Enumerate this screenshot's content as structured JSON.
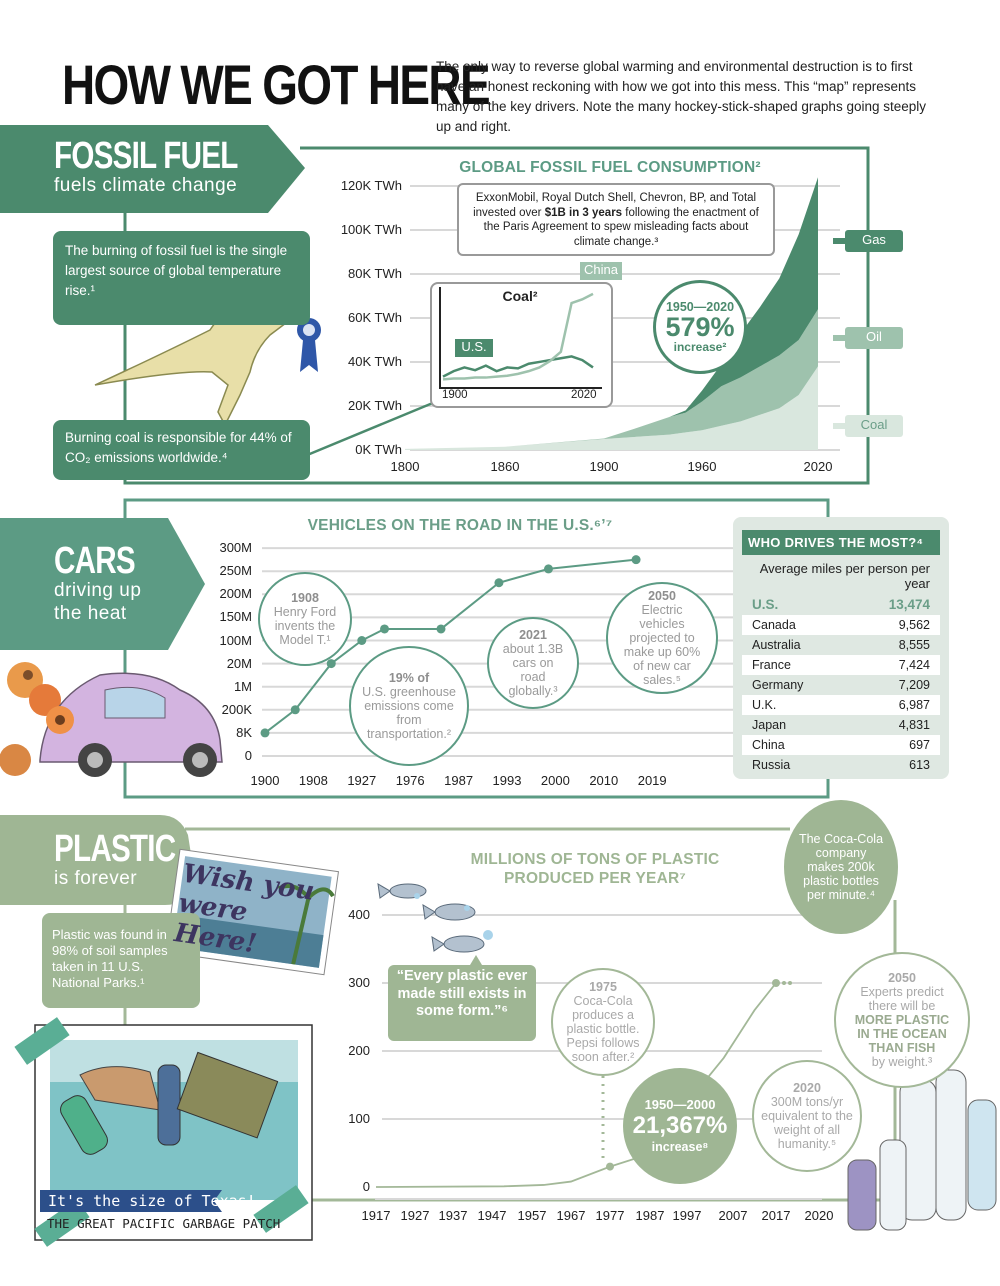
{
  "header": {
    "title": "HOW WE GOT HERE",
    "intro": "The only way to reverse global warming and environmental destruction is to first have an honest reckoning with how we got into this mess. This “map” represents many of the key drivers. Note the many hockey-stick-shaped graphs going steeply up and right."
  },
  "colors": {
    "fossil": "#4b8a6d",
    "cars": "#5c9b84",
    "plastic": "#9fb694",
    "oil": "#9ec2ad",
    "coal": "#d9e7de"
  },
  "fossil": {
    "banner_title": "FOSSIL FUEL",
    "banner_sub": "fuels climate change",
    "fact1": "The burning of fossil fuel is the single largest source of global temperature rise.¹",
    "fact2": "Burning coal is responsible for 44% of CO₂ emissions worldwide.⁴",
    "note_pre": "ExxonMobil, Royal Dutch Shell, Chevron, BP, and Total invested over ",
    "note_bold": "$1B in 3 years",
    "note_post": " following the enactment of the Paris Agreement to spew misleading facts about climate change.³",
    "callout": {
      "range": "1950—2020",
      "value": "579%",
      "label": "increase²"
    },
    "illustration": "dinosaur-skeleton-with-first-place-ribbon"
  },
  "cars": {
    "banner_title": "CARS",
    "banner_sub1": "driving up",
    "banner_sub2": "the heat",
    "notes": [
      {
        "year": "1908",
        "text": "Henry Ford invents the Model T.¹"
      },
      {
        "year": "19% of",
        "text": "U.S. greenhouse emissions come from transportation.²"
      },
      {
        "year": "2021",
        "text": "about 1.3B cars on road globally.³"
      },
      {
        "year": "2050",
        "text": "Electric vehicles projected to make up 60% of new car sales.⁵"
      }
    ],
    "table": {
      "title": "WHO DRIVES THE MOST?⁴",
      "subtitle": "Average miles per person per year",
      "rows": [
        [
          "U.S.",
          "13,474"
        ],
        [
          "Canada",
          "9,562"
        ],
        [
          "Australia",
          "8,555"
        ],
        [
          "France",
          "7,424"
        ],
        [
          "Germany",
          "7,209"
        ],
        [
          "U.K.",
          "6,987"
        ],
        [
          "Japan",
          "4,831"
        ],
        [
          "China",
          "697"
        ],
        [
          "Russia",
          "613"
        ]
      ]
    },
    "illustration": "purple-beetle-car-with-flowers"
  },
  "plastic": {
    "banner_title": "PLASTIC",
    "banner_sub": "is forever",
    "fact": "Plastic was found in 98% of soil samples taken in 11 U.S. National Parks.¹",
    "quote": "“Every plastic ever made still exists in some form.”⁶",
    "coke": "The Coca-Cola company makes 200k plastic bottles per minute.⁴",
    "n1975": {
      "year": "1975",
      "text": "Coca-Cola produces a plastic bottle. Pepsi follows soon after.²"
    },
    "callout": {
      "range": "1950—2000",
      "value": "21,367%",
      "label": "increase⁸"
    },
    "n2020": {
      "year": "2020",
      "text": "300M tons/yr equivalent to the weight of all humanity.⁵"
    },
    "n2050": {
      "year": "2050",
      "pre": "Experts predict there will be",
      "bold": "MORE PLASTIC IN THE OCEAN THAN FISH",
      "post": "by weight.³"
    },
    "postcard": "Wish you were Here!",
    "photo_banner": "It's the size of Texas!",
    "photo_caption": "THE GREAT PACIFIC GARBAGE PATCH"
  },
  "chart_data": [
    {
      "type": "area",
      "stacked": true,
      "title": "GLOBAL FOSSIL FUEL CONSUMPTION²",
      "xlabel": "",
      "ylabel": "",
      "x_ticks": [
        1800,
        1860,
        1900,
        1960,
        2020
      ],
      "y_ticks": [
        0,
        20000,
        40000,
        60000,
        80000,
        100000,
        120000
      ],
      "y_tick_labels": [
        "0K TWh",
        "20K TWh",
        "40K TWh",
        "60K TWh",
        "80K TWh",
        "100K TWh",
        "120K TWh"
      ],
      "ylim": [
        0,
        120000
      ],
      "grid": true,
      "legend": "right",
      "x": [
        1800,
        1860,
        1900,
        1920,
        1940,
        1950,
        1960,
        1970,
        1980,
        1990,
        2000,
        2010,
        2020
      ],
      "series": [
        {
          "name": "Coal",
          "color": "#d9e7de",
          "values": [
            500,
            1500,
            5000,
            6000,
            7000,
            8000,
            9000,
            11000,
            13000,
            16000,
            19000,
            25000,
            38000
          ]
        },
        {
          "name": "Oil",
          "color": "#9ec2ad",
          "values": [
            0,
            0,
            200,
            4000,
            8000,
            9000,
            13000,
            18000,
            20000,
            22000,
            24000,
            25000,
            26000
          ]
        },
        {
          "name": "Gas",
          "color": "#4b8a6d",
          "values": [
            0,
            0,
            0,
            0,
            0,
            1000,
            5000,
            10000,
            20000,
            27000,
            35000,
            48000,
            60000
          ]
        }
      ]
    },
    {
      "type": "line",
      "title": "Coal²",
      "x_ticks": [
        1900,
        2020
      ],
      "x": [
        1880,
        1890,
        1900,
        1910,
        1920,
        1930,
        1940,
        1950,
        1960,
        1970,
        1980,
        1990,
        2000,
        2010,
        2020
      ],
      "series": [
        {
          "name": "U.S.",
          "color": "#4b8a6d",
          "values": [
            8,
            14,
            18,
            15,
            20,
            14,
            18,
            17,
            22,
            24,
            26,
            28,
            30,
            26,
            18
          ]
        },
        {
          "name": "China",
          "color": "#9ec2ad",
          "values": [
            5,
            6,
            6,
            7,
            7,
            8,
            9,
            11,
            14,
            18,
            25,
            35,
            88,
            92,
            98
          ]
        }
      ]
    },
    {
      "type": "line",
      "title": "VEHICLES ON THE ROAD IN THE U.S.⁶ʼ⁷",
      "grid": true,
      "x_ticks": [
        1900,
        1908,
        1927,
        1976,
        1987,
        1993,
        2000,
        2010,
        2019
      ],
      "y_ticks": [
        0,
        8000,
        200000,
        1000000,
        20000000,
        100000000,
        150000000,
        200000000,
        250000000,
        300000000
      ],
      "y_tick_labels": [
        "0",
        "8K",
        "200K",
        "1M",
        "20M",
        "100M",
        "150M",
        "200M",
        "250M",
        "300M"
      ],
      "x": [
        1900,
        1905,
        1915,
        1927,
        1950,
        1983,
        1992,
        1999,
        2016
      ],
      "values": [
        8000,
        200000,
        20000000,
        100000000,
        125000000,
        125000000,
        225000000,
        255000000,
        275000000
      ]
    },
    {
      "type": "line",
      "title": "MILLIONS OF TONS OF PLASTIC PRODUCED PER YEAR⁷",
      "grid": true,
      "x_ticks": [
        1917,
        1927,
        1937,
        1947,
        1957,
        1967,
        1977,
        1987,
        1997,
        2007,
        2017,
        2020
      ],
      "y_ticks": [
        0,
        100,
        200,
        300,
        400
      ],
      "ylim": [
        0,
        400
      ],
      "x": [
        1917,
        1950,
        1960,
        1967,
        1977,
        1985,
        1995,
        2005,
        2012,
        2017
      ],
      "values": [
        0,
        1,
        3,
        8,
        30,
        45,
        110,
        190,
        260,
        300
      ]
    }
  ]
}
